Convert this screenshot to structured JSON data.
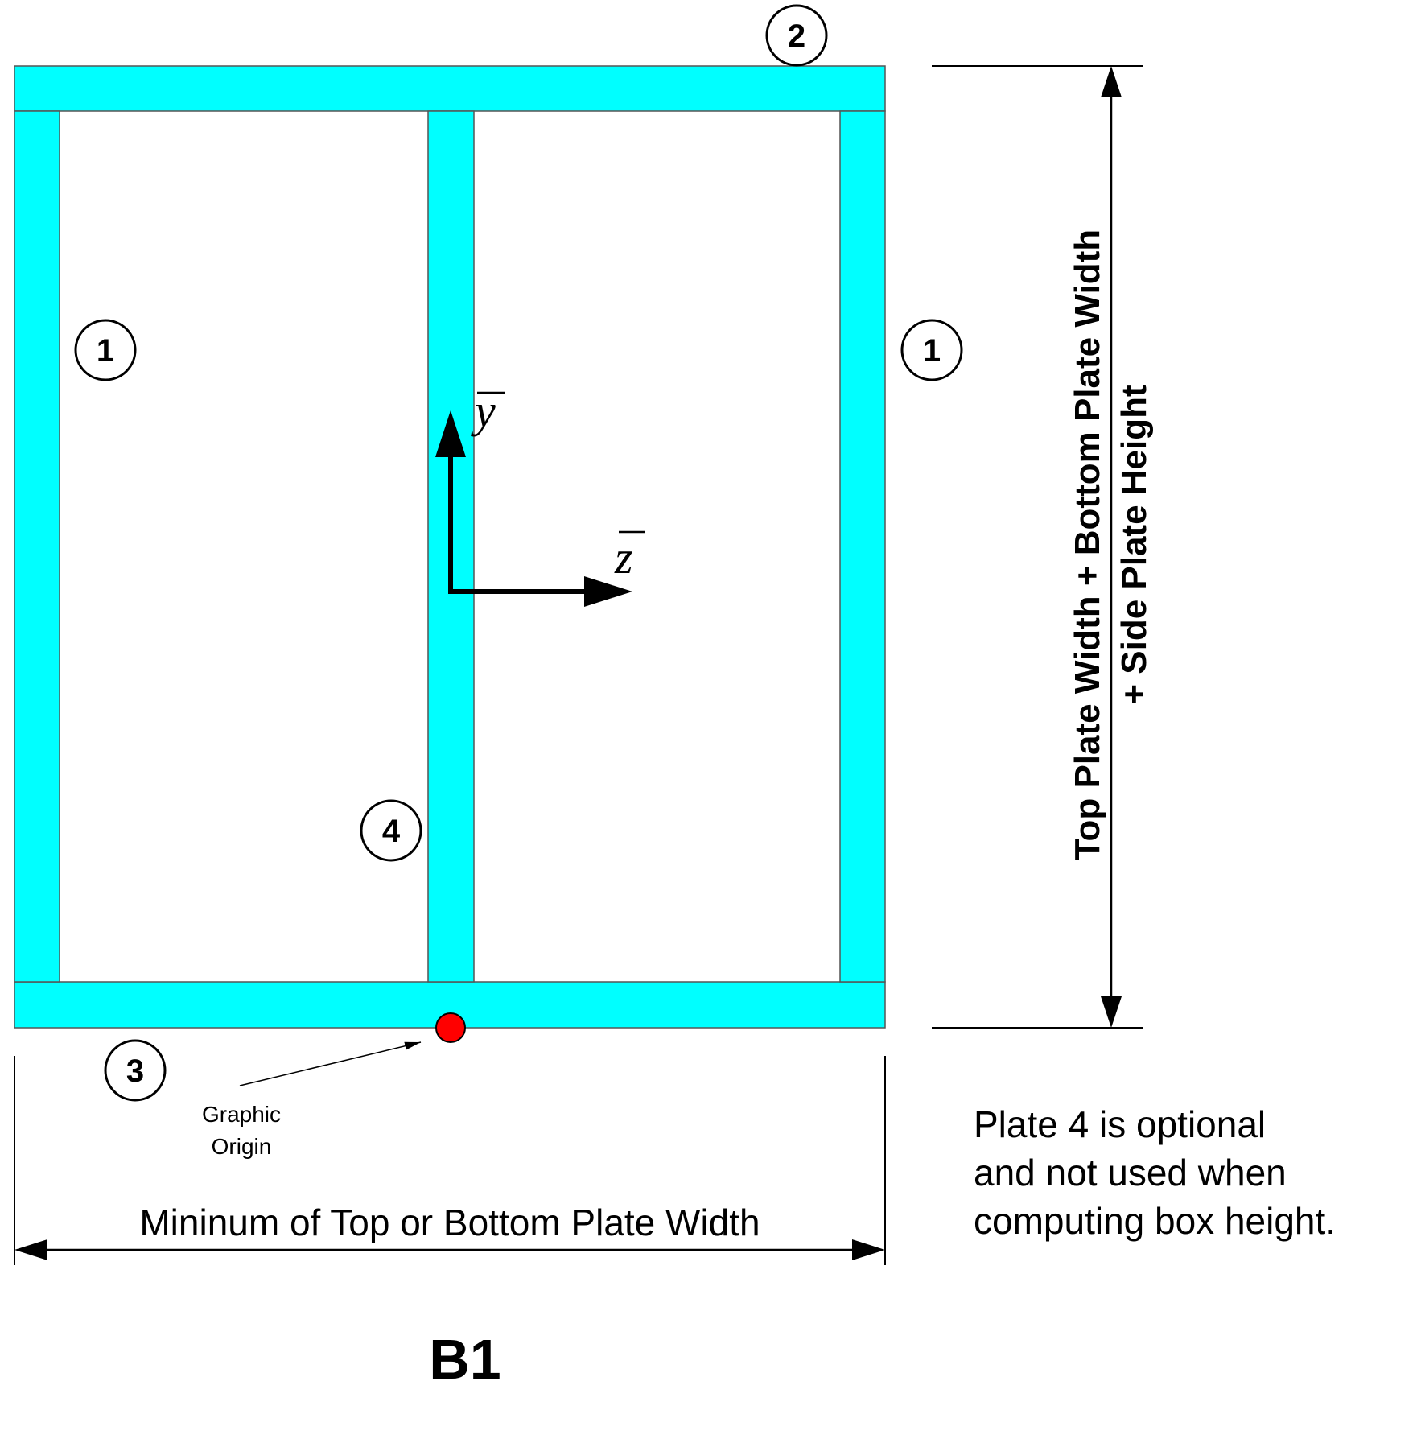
{
  "colors": {
    "plate_fill": "#00FFFF",
    "plate_stroke": "#555555",
    "origin_dot": "#FF0000",
    "line": "#000000"
  },
  "plate_labels": {
    "left_side": "1",
    "right_side": "1",
    "top": "2",
    "bottom": "3",
    "middle": "4"
  },
  "axes": {
    "y_label": "y",
    "z_label": "z"
  },
  "origin": {
    "label_line1": "Graphic",
    "label_line2": "Origin"
  },
  "dimensions": {
    "height_line1": "Top Plate Width + Bottom Plate Width",
    "height_line2": "+ Side Plate Height",
    "width_label": "Mininum of Top or Bottom Plate Width"
  },
  "note": {
    "line1": "Plate 4 is optional",
    "line2": "and not used when",
    "line3": "computing box height."
  },
  "figure_id": "B1"
}
